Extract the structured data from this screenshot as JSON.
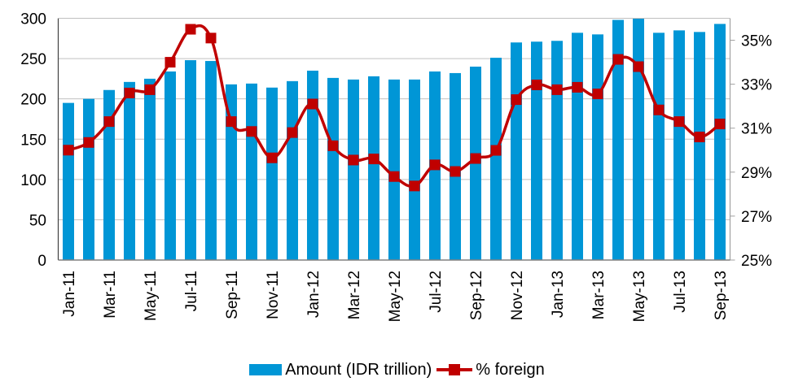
{
  "chart_data": {
    "type": "bar+line",
    "categories": [
      "Jan-11",
      "Feb-11",
      "Mar-11",
      "Apr-11",
      "May-11",
      "Jun-11",
      "Jul-11",
      "Aug-11",
      "Sep-11",
      "Oct-11",
      "Nov-11",
      "Dec-11",
      "Jan-12",
      "Feb-12",
      "Mar-12",
      "Apr-12",
      "May-12",
      "Jun-12",
      "Jul-12",
      "Aug-12",
      "Sep-12",
      "Oct-12",
      "Nov-12",
      "Dec-12",
      "Jan-13",
      "Feb-13",
      "Mar-13",
      "Apr-13",
      "May-13",
      "Jun-13",
      "Jul-13",
      "Aug-13",
      "Sep-13"
    ],
    "x_tick_labels": [
      "Jan-11",
      "Mar-11",
      "May-11",
      "Jul-11",
      "Sep-11",
      "Nov-11",
      "Jan-12",
      "Mar-12",
      "May-12",
      "Jul-12",
      "Sep-12",
      "Nov-12",
      "Jan-13",
      "Mar-13",
      "May-13",
      "Jul-13",
      "Sep-13"
    ],
    "series": [
      {
        "name": "Amount (IDR trillion)",
        "type": "bar",
        "axis": "left",
        "color": "#0096D6",
        "values": [
          195,
          200,
          211,
          221,
          225,
          234,
          248,
          247,
          218,
          219,
          214,
          222,
          235,
          226,
          224,
          228,
          224,
          224,
          234,
          232,
          240,
          251,
          270,
          271,
          272,
          282,
          280,
          298,
          300,
          282,
          285,
          283,
          293
        ]
      },
      {
        "name": "% foreign",
        "type": "line",
        "axis": "right",
        "color": "#C00000",
        "marker": "square",
        "values": [
          30.0,
          30.35,
          31.3,
          32.6,
          32.75,
          34.0,
          35.5,
          35.1,
          31.3,
          30.85,
          29.65,
          30.8,
          32.1,
          30.2,
          29.55,
          29.6,
          28.8,
          28.37,
          29.33,
          29.03,
          29.62,
          29.99,
          32.3,
          32.97,
          32.75,
          32.86,
          32.56,
          34.13,
          33.8,
          31.83,
          31.3,
          30.6,
          31.19
        ]
      }
    ],
    "y_left": {
      "ylim": [
        0,
        300
      ],
      "ticks": [
        0,
        50,
        100,
        150,
        200,
        250,
        300
      ],
      "tick_labels": [
        "0",
        "50",
        "100",
        "150",
        "200",
        "250",
        "300"
      ]
    },
    "y_right": {
      "ylim": [
        25,
        36
      ],
      "ticks": [
        25,
        27,
        29,
        31,
        33,
        35
      ],
      "tick_labels": [
        "25%",
        "27%",
        "29%",
        "31%",
        "33%",
        "35%"
      ]
    },
    "grid": true,
    "legend_position": "bottom",
    "title": "",
    "xlabel": "",
    "ylabel": ""
  },
  "legend": {
    "bar_label": "Amount (IDR trillion)",
    "line_label": "% foreign"
  }
}
